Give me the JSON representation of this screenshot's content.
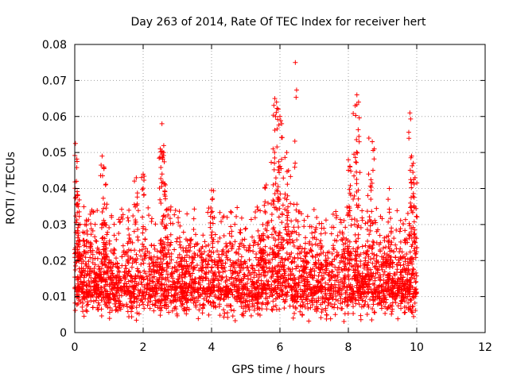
{
  "chart_data": {
    "type": "scatter",
    "title": "Day 263 of 2014, Rate Of TEC Index for receiver hert",
    "xlabel": "GPS time / hours",
    "ylabel": "ROTI / TECUs",
    "xlim": [
      0,
      12
    ],
    "ylim": [
      0,
      0.08
    ],
    "grid": true,
    "marker": "+",
    "color": "#ff0000",
    "x_ticks": [
      "0",
      "2",
      "4",
      "6",
      "8",
      "10",
      "12"
    ],
    "y_ticks": [
      "0",
      "0.01",
      "0.02",
      "0.03",
      "0.04",
      "0.05",
      "0.06",
      "0.07",
      "0.08"
    ],
    "series": [
      {
        "name": "ROTI",
        "x": [
          0.02,
          0.05,
          0.08,
          0.1,
          0.15,
          0.3,
          0.5,
          0.8,
          0.85,
          0.9,
          1.8,
          2.0,
          2.5,
          2.55,
          2.6,
          2.65,
          4.0,
          5.5,
          5.6,
          5.8,
          5.85,
          5.9,
          5.95,
          6.0,
          6.05,
          6.2,
          6.25,
          6.45,
          8.0,
          8.05,
          8.2,
          8.25,
          8.3,
          8.6,
          8.7,
          9.2,
          9.8,
          9.85,
          9.9,
          9.95
        ],
        "y": [
          0.0525,
          0.042,
          0.038,
          0.035,
          0.022,
          0.03,
          0.034,
          0.049,
          0.046,
          0.041,
          0.043,
          0.044,
          0.051,
          0.058,
          0.05,
          0.041,
          0.0395,
          0.03,
          0.041,
          0.051,
          0.065,
          0.064,
          0.062,
          0.06,
          0.058,
          0.05,
          0.045,
          0.075,
          0.048,
          0.046,
          0.063,
          0.066,
          0.064,
          0.054,
          0.053,
          0.04,
          0.061,
          0.049,
          0.047,
          0.043
        ]
      }
    ],
    "dense_band": {
      "x_range": [
        0,
        10
      ],
      "y_range": [
        0.003,
        0.035
      ],
      "n_points": 3200,
      "center": 0.013
    }
  }
}
